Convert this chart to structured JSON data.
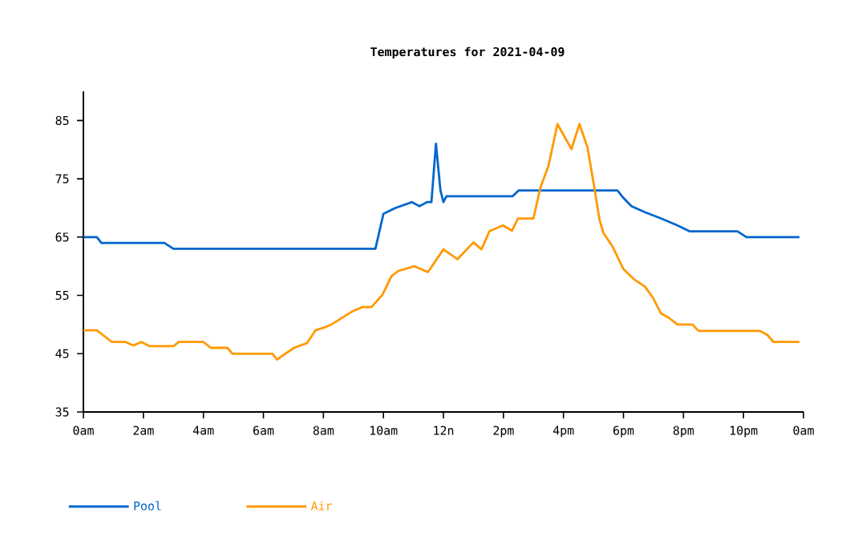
{
  "chart_data": {
    "type": "line",
    "title": "Temperatures for 2021-04-09",
    "xlim": [
      "2021-04-09T00:00",
      "2021-04-10T00:00"
    ],
    "ylim": [
      35,
      90
    ],
    "xticks": [
      {
        "value": "2021-04-09T00:00",
        "label": "0am"
      },
      {
        "value": "2021-04-09T02:00",
        "label": "2am"
      },
      {
        "value": "2021-04-09T04:00",
        "label": "4am"
      },
      {
        "value": "2021-04-09T06:00",
        "label": "6am"
      },
      {
        "value": "2021-04-09T08:00",
        "label": "8am"
      },
      {
        "value": "2021-04-09T10:00",
        "label": "10am"
      },
      {
        "value": "2021-04-09T12:00",
        "label": "12n"
      },
      {
        "value": "2021-04-09T14:00",
        "label": "2pm"
      },
      {
        "value": "2021-04-09T16:00",
        "label": "4pm"
      },
      {
        "value": "2021-04-09T18:00",
        "label": "6pm"
      },
      {
        "value": "2021-04-09T20:00",
        "label": "8pm"
      },
      {
        "value": "2021-04-09T22:00",
        "label": "10pm"
      },
      {
        "value": "2021-04-10T00:00",
        "label": "0am"
      }
    ],
    "yticks": [
      35,
      45,
      55,
      65,
      75,
      85
    ],
    "legend": "bottom left",
    "grid": false,
    "marker": "none",
    "line_style": "solid",
    "series": [
      {
        "name": "Pool",
        "color": "#0066cc",
        "x": [
          "2021-04-09T00:00",
          "2021-04-09T00:27",
          "2021-04-09T00:36",
          "2021-04-09T02:42",
          "2021-04-09T03:00",
          "2021-04-09T09:44",
          "2021-04-09T10:00",
          "2021-04-09T10:24",
          "2021-04-09T10:57",
          "2021-04-09T11:12",
          "2021-04-09T11:27",
          "2021-04-09T11:36",
          "2021-04-09T11:45",
          "2021-04-09T11:54",
          "2021-04-09T12:00",
          "2021-04-09T12:06",
          "2021-04-09T14:18",
          "2021-04-09T14:30",
          "2021-04-09T17:48",
          "2021-04-09T18:00",
          "2021-04-09T18:16",
          "2021-04-09T18:42",
          "2021-04-09T19:15",
          "2021-04-09T19:48",
          "2021-04-09T20:12",
          "2021-04-09T21:48",
          "2021-04-09T22:06",
          "2021-04-09T23:52"
        ],
        "values": [
          65,
          65,
          64,
          64,
          63,
          63,
          69,
          70,
          71,
          70.3,
          71,
          71,
          81,
          73,
          71,
          72,
          72,
          73,
          73,
          71.7,
          70.3,
          69.3,
          68.2,
          67,
          66,
          66,
          65,
          65
        ]
      },
      {
        "name": "Air",
        "color": "#ff9900",
        "x": [
          "2021-04-09T00:00",
          "2021-04-09T00:27",
          "2021-04-09T00:57",
          "2021-04-09T01:24",
          "2021-04-09T01:40",
          "2021-04-09T01:56",
          "2021-04-09T02:12",
          "2021-04-09T03:00",
          "2021-04-09T03:11",
          "2021-04-09T04:00",
          "2021-04-09T04:15",
          "2021-04-09T04:48",
          "2021-04-09T04:58",
          "2021-04-09T06:18",
          "2021-04-09T06:27",
          "2021-04-09T07:01",
          "2021-04-09T07:27",
          "2021-04-09T07:44",
          "2021-04-09T08:05",
          "2021-04-09T08:16",
          "2021-04-09T08:59",
          "2021-04-09T09:18",
          "2021-04-09T09:36",
          "2021-04-09T09:58",
          "2021-04-09T10:16",
          "2021-04-09T10:30",
          "2021-04-09T11:02",
          "2021-04-09T11:29",
          "2021-04-09T12:00",
          "2021-04-09T12:28",
          "2021-04-09T13:00",
          "2021-04-09T13:16",
          "2021-04-09T13:32",
          "2021-04-09T13:59",
          "2021-04-09T14:17",
          "2021-04-09T14:29",
          "2021-04-09T15:00",
          "2021-04-09T15:14",
          "2021-04-09T15:30",
          "2021-04-09T15:48",
          "2021-04-09T16:16",
          "2021-04-09T16:32",
          "2021-04-09T16:48",
          "2021-04-09T17:00",
          "2021-04-09T17:12",
          "2021-04-09T17:20",
          "2021-04-09T17:38",
          "2021-04-09T18:00",
          "2021-04-09T18:22",
          "2021-04-09T18:43",
          "2021-04-09T18:59",
          "2021-04-09T19:15",
          "2021-04-09T19:30",
          "2021-04-09T19:48",
          "2021-04-09T20:18",
          "2021-04-09T20:30",
          "2021-04-09T22:33",
          "2021-04-09T22:48",
          "2021-04-09T23:00",
          "2021-04-09T23:52"
        ],
        "values": [
          49,
          49,
          47,
          47,
          46.4,
          47,
          46.3,
          46.3,
          47,
          47,
          46,
          46,
          45,
          45,
          44,
          46,
          46.8,
          49,
          49.6,
          50,
          52.3,
          53,
          53,
          55.1,
          58.3,
          59.2,
          60,
          59,
          62.9,
          61.2,
          64.1,
          62.9,
          66,
          67,
          66.1,
          68.2,
          68.2,
          73.5,
          77.2,
          84.4,
          80.1,
          84.4,
          80.4,
          74.4,
          68,
          65.7,
          63.4,
          59.5,
          57.7,
          56.5,
          54.6,
          51.9,
          51.2,
          50,
          50,
          48.9,
          48.9,
          48.2,
          47,
          47
        ]
      }
    ]
  }
}
